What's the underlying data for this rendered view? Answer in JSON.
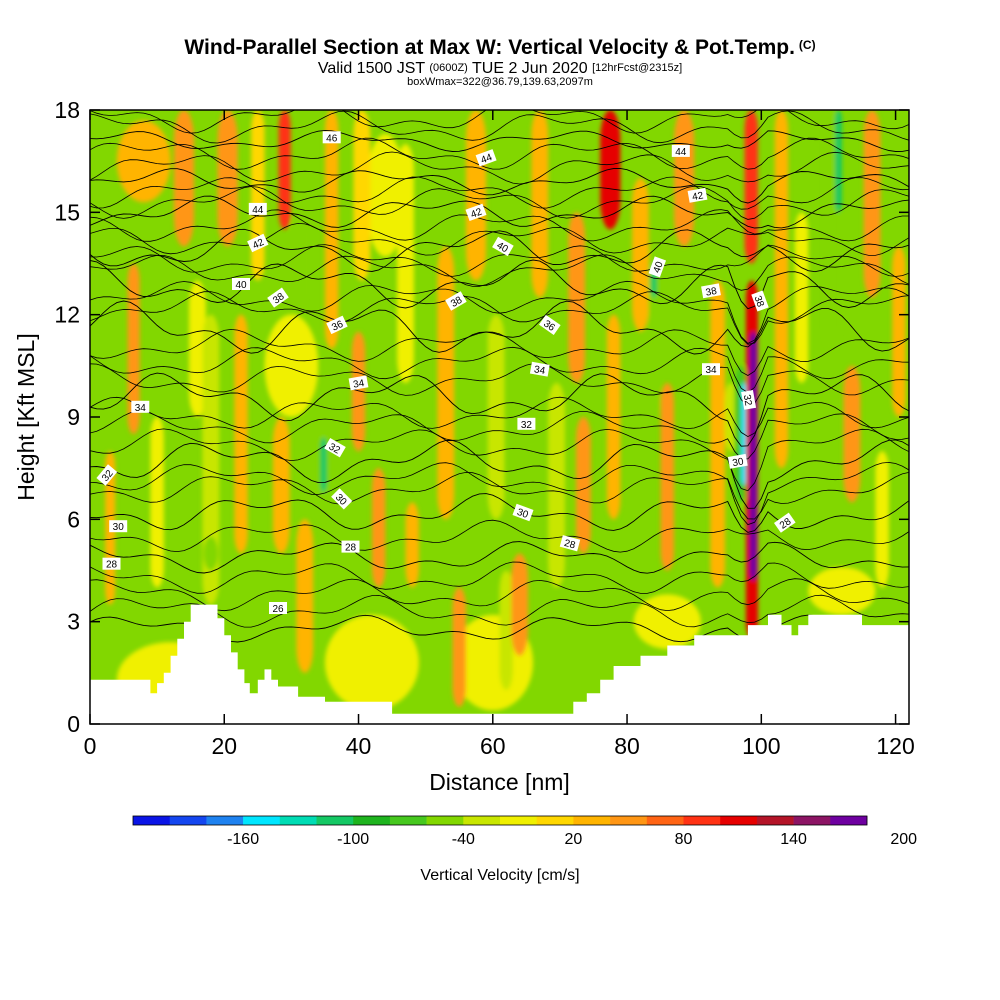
{
  "header": {
    "title": "Wind-Parallel Section at Max W: Vertical Velocity & Pot.Temp.",
    "copyright": "(C)",
    "valid_prefix": "Valid 1500 JST",
    "valid_zulu": "(0600Z)",
    "valid_date": "TUE 2 Jun 2020",
    "forecast": "[12hrFcst@2315z]",
    "boxwmax": "boxWmax=322@36.79,139.63,2097m"
  },
  "chart_data": {
    "type": "heatmap",
    "xlabel": "Distance [nm]",
    "ylabel": "Height [Kft MSL]",
    "xlim": [
      0,
      122
    ],
    "ylim": [
      0,
      18
    ],
    "x_ticks": [
      0,
      20,
      40,
      60,
      80,
      100,
      120
    ],
    "y_ticks": [
      0,
      3,
      6,
      9,
      12,
      15,
      18
    ],
    "x_tick_labels": [
      "0",
      "20",
      "40",
      "60",
      "80",
      "100",
      "120"
    ],
    "y_tick_labels": [
      "0",
      "3",
      "6",
      "9",
      "12",
      "15",
      "18"
    ],
    "grid": false,
    "colorbar": {
      "title": "Vertical Velocity [cm/s]",
      "orientation": "horizontal",
      "labels": [
        {
          "value": -160,
          "text": "-160"
        },
        {
          "value": -100,
          "text": "-100"
        },
        {
          "value": -40,
          "text": "-40"
        },
        {
          "value": 20,
          "text": "20"
        },
        {
          "value": 80,
          "text": "80"
        },
        {
          "value": 140,
          "text": "140"
        },
        {
          "value": 200,
          "text": "200"
        }
      ],
      "colors": [
        "#0a14e6",
        "#1446f0",
        "#1e82f0",
        "#00e6ff",
        "#00dcb4",
        "#14c864",
        "#1eb41e",
        "#46c81e",
        "#82d700",
        "#c8e600",
        "#f0f000",
        "#ffd700",
        "#ffb400",
        "#ff9614",
        "#ff6414",
        "#ff3214",
        "#e60000",
        "#b41428",
        "#8c1464",
        "#6e00a0"
      ]
    },
    "background_color": "#82d700",
    "terrain": [
      [
        0,
        1.3
      ],
      [
        9,
        1.3
      ],
      [
        9,
        0.9
      ],
      [
        10,
        0.9
      ],
      [
        10,
        1.2
      ],
      [
        11,
        1.2
      ],
      [
        11,
        1.5
      ],
      [
        12,
        1.5
      ],
      [
        12,
        2.0
      ],
      [
        13,
        2.0
      ],
      [
        13,
        2.5
      ],
      [
        14,
        2.5
      ],
      [
        14,
        3.0
      ],
      [
        15,
        3.0
      ],
      [
        15,
        3.5
      ],
      [
        19,
        3.5
      ],
      [
        19,
        3.1
      ],
      [
        20,
        3.1
      ],
      [
        20,
        2.6
      ],
      [
        21,
        2.6
      ],
      [
        21,
        2.1
      ],
      [
        22,
        2.1
      ],
      [
        22,
        1.6
      ],
      [
        23,
        1.6
      ],
      [
        23,
        1.2
      ],
      [
        23.8,
        1.2
      ],
      [
        23.8,
        0.9
      ],
      [
        25,
        0.9
      ],
      [
        25,
        1.3
      ],
      [
        26,
        1.3
      ],
      [
        26,
        1.6
      ],
      [
        27,
        1.6
      ],
      [
        27,
        1.3
      ],
      [
        28,
        1.3
      ],
      [
        28,
        1.1
      ],
      [
        31,
        1.1
      ],
      [
        31,
        0.8
      ],
      [
        35,
        0.8
      ],
      [
        35,
        0.65
      ],
      [
        45,
        0.65
      ],
      [
        45,
        0.3
      ],
      [
        72,
        0.3
      ],
      [
        72,
        0.65
      ],
      [
        74,
        0.65
      ],
      [
        74,
        0.9
      ],
      [
        76,
        0.9
      ],
      [
        76,
        1.3
      ],
      [
        78,
        1.3
      ],
      [
        78,
        1.7
      ],
      [
        82,
        1.7
      ],
      [
        82,
        2.0
      ],
      [
        86,
        2.0
      ],
      [
        86,
        2.3
      ],
      [
        90,
        2.3
      ],
      [
        90,
        2.6
      ],
      [
        98,
        2.6
      ],
      [
        98,
        2.9
      ],
      [
        101,
        2.9
      ],
      [
        101,
        3.2
      ],
      [
        103,
        3.2
      ],
      [
        103,
        2.9
      ],
      [
        104.5,
        2.9
      ],
      [
        104.5,
        2.6
      ],
      [
        105.5,
        2.6
      ],
      [
        105.5,
        2.9
      ],
      [
        107,
        2.9
      ],
      [
        107,
        3.2
      ],
      [
        115,
        3.2
      ],
      [
        115,
        2.9
      ],
      [
        122,
        2.9
      ]
    ],
    "wv_columns": [
      {
        "x": 3,
        "w": 1.5,
        "y0": 3.5,
        "y1": 8.0,
        "value": 20
      },
      {
        "x": 6.5,
        "w": 1.8,
        "y0": 8.5,
        "y1": 13.5,
        "value": 40
      },
      {
        "x": 10,
        "w": 2.0,
        "y0": 4.0,
        "y1": 9.0,
        "value": -20
      },
      {
        "x": 14,
        "w": 3.0,
        "y0": 14.0,
        "y1": 18.0,
        "value": 40
      },
      {
        "x": 16,
        "w": 2.5,
        "y0": 9.0,
        "y1": 13.0,
        "value": -20
      },
      {
        "x": 18,
        "w": 2.5,
        "y0": 3.5,
        "y1": 12.0,
        "value": -30
      },
      {
        "x": 18,
        "w": 2.2,
        "y0": 4.5,
        "y1": 5.5,
        "value": -50
      },
      {
        "x": 20.5,
        "w": 3.0,
        "y0": 14.0,
        "y1": 18.0,
        "value": 50
      },
      {
        "x": 22.5,
        "w": 2.0,
        "y0": 5.0,
        "y1": 12.0,
        "value": 30
      },
      {
        "x": 25,
        "w": 2.0,
        "y0": 13.0,
        "y1": 18.0,
        "value": 10
      },
      {
        "x": 29,
        "w": 1.8,
        "y0": 14.5,
        "y1": 18.0,
        "value": 90
      },
      {
        "x": 28.5,
        "w": 2.5,
        "y0": 5.0,
        "y1": 9.0,
        "value": 30
      },
      {
        "x": 31,
        "w": 2.0,
        "y0": 12.0,
        "y1": 15.0,
        "value": -60
      },
      {
        "x": 32,
        "w": 2.5,
        "y0": 1.5,
        "y1": 6.0,
        "value": 30
      },
      {
        "x": 34.8,
        "w": 1.6,
        "y0": 6.0,
        "y1": 10.0,
        "value": -60
      },
      {
        "x": 34.8,
        "w": 1.0,
        "y0": 6.8,
        "y1": 8.4,
        "value": -110
      },
      {
        "x": 36,
        "w": 2.0,
        "y0": 11.0,
        "y1": 18.0,
        "value": 20
      },
      {
        "x": 40,
        "w": 2.0,
        "y0": 8.0,
        "y1": 11.5,
        "value": 50
      },
      {
        "x": 40.5,
        "w": 2.5,
        "y0": 13.0,
        "y1": 18.0,
        "value": 10
      },
      {
        "x": 43,
        "w": 2.0,
        "y0": 4.0,
        "y1": 7.5,
        "value": 40
      },
      {
        "x": 47,
        "w": 2.5,
        "y0": 10.0,
        "y1": 17.0,
        "value": -20
      },
      {
        "x": 48,
        "w": 2.0,
        "y0": 4.0,
        "y1": 6.5,
        "value": 30
      },
      {
        "x": 53,
        "w": 2.5,
        "y0": 6.0,
        "y1": 14.0,
        "value": 20
      },
      {
        "x": 55,
        "w": 2.0,
        "y0": 0.5,
        "y1": 4.0,
        "value": 40
      },
      {
        "x": 57.5,
        "w": 3.0,
        "y0": 13.0,
        "y1": 18.0,
        "value": 30
      },
      {
        "x": 60.5,
        "w": 2.5,
        "y0": 6.0,
        "y1": 12.0,
        "value": -30
      },
      {
        "x": 62,
        "w": 2.0,
        "y0": 1.0,
        "y1": 4.5,
        "value": -30
      },
      {
        "x": 64,
        "w": 2.5,
        "y0": 2.0,
        "y1": 5.0,
        "value": 40
      },
      {
        "x": 67,
        "w": 2.5,
        "y0": 12.5,
        "y1": 18.0,
        "value": 20
      },
      {
        "x": 69.5,
        "w": 2.5,
        "y0": 4.0,
        "y1": 10.0,
        "value": -40
      },
      {
        "x": 72.5,
        "w": 2.5,
        "y0": 10.0,
        "y1": 15.0,
        "value": 40
      },
      {
        "x": 73.5,
        "w": 2.2,
        "y0": 5.0,
        "y1": 9.0,
        "value": 40
      },
      {
        "x": 77.5,
        "w": 3.0,
        "y0": 14.5,
        "y1": 18.0,
        "value": 100
      },
      {
        "x": 78,
        "w": 2.0,
        "y0": 6.0,
        "y1": 12.0,
        "value": 20
      },
      {
        "x": 82,
        "w": 2.5,
        "y0": 11.5,
        "y1": 16.0,
        "value": 30
      },
      {
        "x": 84,
        "w": 1.6,
        "y0": 9.0,
        "y1": 14.0,
        "value": -60
      },
      {
        "x": 84,
        "w": 0.9,
        "y0": 12.5,
        "y1": 13.5,
        "value": -110
      },
      {
        "x": 86,
        "w": 2.0,
        "y0": 4.5,
        "y1": 10.0,
        "value": 40
      },
      {
        "x": 88.5,
        "w": 3.0,
        "y0": 14.0,
        "y1": 18.0,
        "value": 40
      },
      {
        "x": 93.5,
        "w": 2.2,
        "y0": 4.0,
        "y1": 13.0,
        "value": 30
      },
      {
        "x": 95.5,
        "w": 2.0,
        "y0": 8.0,
        "y1": 10.0,
        "value": -40
      },
      {
        "x": 97,
        "w": 2.0,
        "y0": 6.5,
        "y1": 10.5,
        "value": -80
      },
      {
        "x": 97.4,
        "w": 0.7,
        "y0": 7.0,
        "y1": 10.0,
        "value": -160
      },
      {
        "x": 98.5,
        "w": 2.0,
        "y0": 13.5,
        "y1": 18.0,
        "value": 90
      },
      {
        "x": 98.6,
        "w": 1.8,
        "y0": 2.5,
        "y1": 13.0,
        "value": 110
      },
      {
        "x": 98.8,
        "w": 1.1,
        "y0": 4.2,
        "y1": 11.5,
        "value": 180
      },
      {
        "x": 98.9,
        "w": 0.55,
        "y0": 4.5,
        "y1": 11.0,
        "value": 230
      },
      {
        "x": 103,
        "w": 2.0,
        "y0": 7.5,
        "y1": 18.0,
        "value": 20
      },
      {
        "x": 106,
        "w": 2.0,
        "y0": 10.0,
        "y1": 15.0,
        "value": -20
      },
      {
        "x": 110.5,
        "w": 2.2,
        "y0": 11.0,
        "y1": 18.0,
        "value": -60
      },
      {
        "x": 111.5,
        "w": 1.0,
        "y0": 15.0,
        "y1": 18.0,
        "value": -110
      },
      {
        "x": 113.5,
        "w": 2.5,
        "y0": 6.5,
        "y1": 10.5,
        "value": 50
      },
      {
        "x": 116.5,
        "w": 2.5,
        "y0": 12.5,
        "y1": 18.0,
        "value": 40
      },
      {
        "x": 118,
        "w": 2.0,
        "y0": 4.0,
        "y1": 8.0,
        "value": -20
      },
      {
        "x": 120.5,
        "w": 2.0,
        "y0": 9.0,
        "y1": 14.0,
        "value": 20
      }
    ],
    "wv_cells": [
      {
        "x": 12,
        "y": 1.3,
        "rx": 8,
        "ry": 1.1,
        "value": -20
      },
      {
        "x": 42,
        "y": 1.8,
        "rx": 7,
        "ry": 1.4,
        "value": -20
      },
      {
        "x": 60,
        "y": 1.8,
        "rx": 6,
        "ry": 1.4,
        "value": -20
      },
      {
        "x": 86,
        "y": 3.0,
        "rx": 5,
        "ry": 0.8,
        "value": -20
      },
      {
        "x": 112,
        "y": 3.9,
        "rx": 5,
        "ry": 0.7,
        "value": -20
      },
      {
        "x": 30,
        "y": 10.5,
        "rx": 4,
        "ry": 1.5,
        "value": -20
      },
      {
        "x": 44,
        "y": 15.5,
        "rx": 3,
        "ry": 1.8,
        "value": -20
      },
      {
        "x": 8,
        "y": 16.5,
        "rx": 4,
        "ry": 1.2,
        "value": 20
      }
    ],
    "theta_contours": [
      {
        "label": "26",
        "base": 2.8,
        "amp": 0.25
      },
      {
        "label": "28",
        "base": 4.9,
        "amp": 0.3
      },
      {
        "label": "30",
        "base": 6.2,
        "amp": 0.35
      },
      {
        "label": "32",
        "base": 7.7,
        "amp": 0.4
      },
      {
        "label": "34",
        "base": 9.6,
        "amp": 0.45
      },
      {
        "label": "36",
        "base": 11.6,
        "amp": 0.5
      },
      {
        "label": "38",
        "base": 12.9,
        "amp": 0.45
      },
      {
        "label": "40",
        "base": 13.9,
        "amp": 0.4
      },
      {
        "label": "42",
        "base": 15.0,
        "amp": 0.3
      },
      {
        "label": "44",
        "base": 15.9,
        "amp": 0.25
      },
      {
        "label": "46",
        "base": 17.1,
        "amp": 0.2
      }
    ],
    "extra_isentropes": [
      3.3,
      3.8,
      4.3,
      5.5,
      6.9,
      7.2,
      8.2,
      8.7,
      9.1,
      10.1,
      10.6,
      11.1,
      12.2,
      12.5,
      13.3,
      13.6,
      14.2,
      14.6,
      15.3,
      15.6,
      16.3,
      16.7,
      17.5,
      17.8
    ],
    "contour_labels": [
      {
        "text": "46",
        "x": 36,
        "y": 17.2,
        "rot": 0
      },
      {
        "text": "44",
        "x": 59,
        "y": 16.6,
        "rot": -20
      },
      {
        "text": "44",
        "x": 88,
        "y": 16.8,
        "rot": 0
      },
      {
        "text": "44",
        "x": 25,
        "y": 15.1,
        "rot": 0
      },
      {
        "text": "42",
        "x": 57.5,
        "y": 15.0,
        "rot": -20
      },
      {
        "text": "42",
        "x": 90.5,
        "y": 15.5,
        "rot": -10
      },
      {
        "text": "42",
        "x": 25,
        "y": 14.1,
        "rot": -25
      },
      {
        "text": "40",
        "x": 61.5,
        "y": 14.0,
        "rot": 30
      },
      {
        "text": "40",
        "x": 84.5,
        "y": 13.4,
        "rot": -70
      },
      {
        "text": "40",
        "x": 22.5,
        "y": 12.9,
        "rot": 0
      },
      {
        "text": "38",
        "x": 28,
        "y": 12.5,
        "rot": -35
      },
      {
        "text": "38",
        "x": 54.5,
        "y": 12.4,
        "rot": -30
      },
      {
        "text": "38",
        "x": 92.5,
        "y": 12.7,
        "rot": -10
      },
      {
        "text": "38",
        "x": 99.8,
        "y": 12.4,
        "rot": 70
      },
      {
        "text": "36",
        "x": 36.8,
        "y": 11.7,
        "rot": -25
      },
      {
        "text": "36",
        "x": 68.5,
        "y": 11.7,
        "rot": 35
      },
      {
        "text": "34",
        "x": 40,
        "y": 10.0,
        "rot": -10
      },
      {
        "text": "34",
        "x": 67,
        "y": 10.4,
        "rot": 10
      },
      {
        "text": "34",
        "x": 92.5,
        "y": 10.4,
        "rot": 0
      },
      {
        "text": "34",
        "x": 7.5,
        "y": 9.3,
        "rot": 0
      },
      {
        "text": "32",
        "x": 65,
        "y": 8.8,
        "rot": 0
      },
      {
        "text": "32",
        "x": 98.1,
        "y": 9.5,
        "rot": 80
      },
      {
        "text": "32",
        "x": 36.5,
        "y": 8.1,
        "rot": 30
      },
      {
        "text": "32",
        "x": 2.5,
        "y": 7.3,
        "rot": -50
      },
      {
        "text": "30",
        "x": 96.5,
        "y": 7.7,
        "rot": -10
      },
      {
        "text": "30",
        "x": 37.5,
        "y": 6.6,
        "rot": 45
      },
      {
        "text": "30",
        "x": 64.5,
        "y": 6.2,
        "rot": 20
      },
      {
        "text": "30",
        "x": 4.2,
        "y": 5.8,
        "rot": 0
      },
      {
        "text": "28",
        "x": 103.5,
        "y": 5.9,
        "rot": -35
      },
      {
        "text": "28",
        "x": 38.8,
        "y": 5.2,
        "rot": 0
      },
      {
        "text": "28",
        "x": 71.5,
        "y": 5.3,
        "rot": 15
      },
      {
        "text": "28",
        "x": 3.2,
        "y": 4.7,
        "rot": 0
      },
      {
        "text": "26",
        "x": 28,
        "y": 3.4,
        "rot": 0
      }
    ]
  }
}
